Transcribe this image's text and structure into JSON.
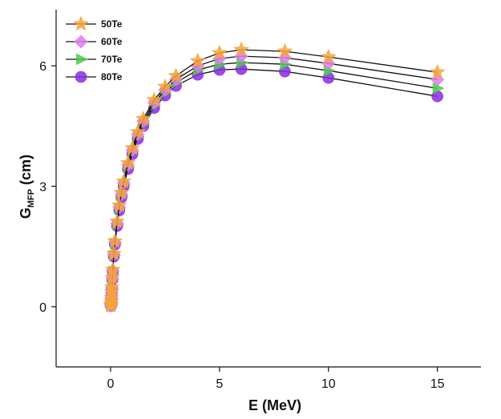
{
  "chart_data": {
    "type": "line",
    "xlabel": "E (MeV)",
    "ylabel": {
      "main": "G",
      "sub": "MFP",
      "unit": " (cm)"
    },
    "xlim": [
      -2.5,
      17
    ],
    "ylim": [
      -1.5,
      7.4
    ],
    "xticks": [
      0,
      5,
      10,
      15
    ],
    "yticks": [
      0,
      3,
      6
    ],
    "xtick_labels": [
      "0",
      "5",
      "10",
      "15"
    ],
    "ytick_labels": [
      "0",
      "3",
      "6"
    ],
    "grid": false,
    "legend_position": "top-left",
    "x": [
      0.015,
      0.02,
      0.03,
      0.04,
      0.05,
      0.06,
      0.08,
      0.1,
      0.15,
      0.2,
      0.3,
      0.4,
      0.5,
      0.6,
      0.8,
      1.0,
      1.25,
      1.5,
      2.0,
      2.5,
      3.0,
      4.0,
      5.0,
      6.0,
      8.0,
      10.0,
      15.0
    ],
    "series": [
      {
        "name": "50Te",
        "marker": "star",
        "color": "#F4A43A",
        "values": [
          0.02,
          0.05,
          0.12,
          0.22,
          0.36,
          0.48,
          0.72,
          0.92,
          1.32,
          1.63,
          2.12,
          2.52,
          2.84,
          3.12,
          3.58,
          3.95,
          4.35,
          4.68,
          5.15,
          5.48,
          5.75,
          6.12,
          6.32,
          6.4,
          6.36,
          6.22,
          5.84
        ]
      },
      {
        "name": "60Te",
        "marker": "diamond",
        "color": "#E07AF0",
        "values": [
          0.02,
          0.05,
          0.12,
          0.22,
          0.35,
          0.47,
          0.7,
          0.9,
          1.3,
          1.6,
          2.08,
          2.48,
          2.8,
          3.08,
          3.53,
          3.9,
          4.29,
          4.62,
          5.08,
          5.4,
          5.66,
          6.0,
          6.18,
          6.24,
          6.2,
          6.06,
          5.66
        ]
      },
      {
        "name": "70Te",
        "marker": "triangle",
        "color": "#4CCB4C",
        "values": [
          0.02,
          0.05,
          0.11,
          0.21,
          0.34,
          0.46,
          0.69,
          0.88,
          1.28,
          1.58,
          2.05,
          2.44,
          2.76,
          3.04,
          3.48,
          3.85,
          4.24,
          4.56,
          5.02,
          5.33,
          5.58,
          5.9,
          6.04,
          6.08,
          6.04,
          5.88,
          5.44
        ]
      },
      {
        "name": "80Te",
        "marker": "circle",
        "color": "#8A2BE2",
        "values": [
          0.02,
          0.05,
          0.11,
          0.2,
          0.33,
          0.45,
          0.67,
          0.86,
          1.25,
          1.55,
          2.01,
          2.4,
          2.72,
          3.0,
          3.43,
          3.8,
          4.18,
          4.5,
          4.95,
          5.26,
          5.5,
          5.78,
          5.9,
          5.92,
          5.86,
          5.7,
          5.24
        ]
      }
    ]
  }
}
